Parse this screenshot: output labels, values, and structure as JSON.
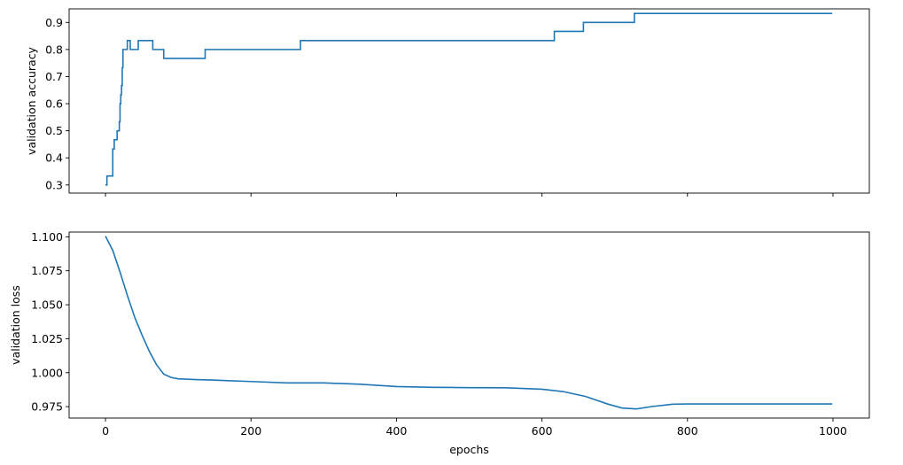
{
  "chart_data": [
    {
      "type": "line",
      "title": "",
      "xlabel": "",
      "ylabel": "validation accuracy",
      "xlim": [
        -50,
        1050
      ],
      "ylim": [
        0.27,
        0.95
      ],
      "x_ticks": [
        0,
        200,
        400,
        600,
        800,
        1000
      ],
      "x_tick_labels_visible": false,
      "y_ticks": [
        0.3,
        0.4,
        0.5,
        0.6,
        0.7,
        0.8,
        0.9
      ],
      "y_tick_labels": [
        "0.3",
        "0.4",
        "0.5",
        "0.6",
        "0.7",
        "0.8",
        "0.9"
      ],
      "grid": false,
      "legend": "none",
      "series": [
        {
          "color": "#1f77b4",
          "step": true,
          "x": [
            0,
            2,
            10,
            12,
            16,
            19,
            20,
            21,
            22,
            23,
            24,
            25,
            30,
            34,
            45,
            65,
            75,
            80,
            137,
            268,
            617,
            657,
            727,
            999
          ],
          "y": [
            0.3,
            0.333,
            0.433,
            0.467,
            0.5,
            0.533,
            0.6,
            0.633,
            0.667,
            0.733,
            0.8,
            0.8,
            0.833,
            0.8,
            0.833,
            0.8,
            0.8,
            0.767,
            0.8,
            0.833,
            0.867,
            0.9,
            0.933,
            0.933
          ]
        }
      ]
    },
    {
      "type": "line",
      "title": "",
      "xlabel": "epochs",
      "ylabel": "validation loss",
      "xlim": [
        -50,
        1050
      ],
      "ylim": [
        0.9666,
        1.1035
      ],
      "x_ticks": [
        0,
        200,
        400,
        600,
        800,
        1000
      ],
      "x_tick_labels": [
        "0",
        "200",
        "400",
        "600",
        "800",
        "1000"
      ],
      "y_ticks": [
        0.975,
        1.0,
        1.025,
        1.05,
        1.075,
        1.1
      ],
      "y_tick_labels": [
        "0.975",
        "1.000",
        "1.025",
        "1.050",
        "1.075",
        "1.100"
      ],
      "grid": false,
      "legend": "none",
      "series": [
        {
          "color": "#1f77b4",
          "step": false,
          "x": [
            0,
            10,
            20,
            30,
            40,
            50,
            60,
            70,
            80,
            90,
            100,
            120,
            150,
            200,
            250,
            300,
            350,
            400,
            450,
            500,
            550,
            600,
            630,
            660,
            690,
            710,
            730,
            750,
            780,
            800,
            850,
            900,
            999
          ],
          "y": [
            1.1005,
            1.09,
            1.074,
            1.057,
            1.041,
            1.028,
            1.016,
            1.006,
            0.999,
            0.9965,
            0.9955,
            0.995,
            0.9945,
            0.9935,
            0.9925,
            0.9925,
            0.9915,
            0.9898,
            0.9892,
            0.989,
            0.9889,
            0.9878,
            0.986,
            0.9825,
            0.977,
            0.974,
            0.9733,
            0.975,
            0.9768,
            0.977,
            0.977,
            0.977,
            0.977
          ]
        }
      ]
    }
  ]
}
